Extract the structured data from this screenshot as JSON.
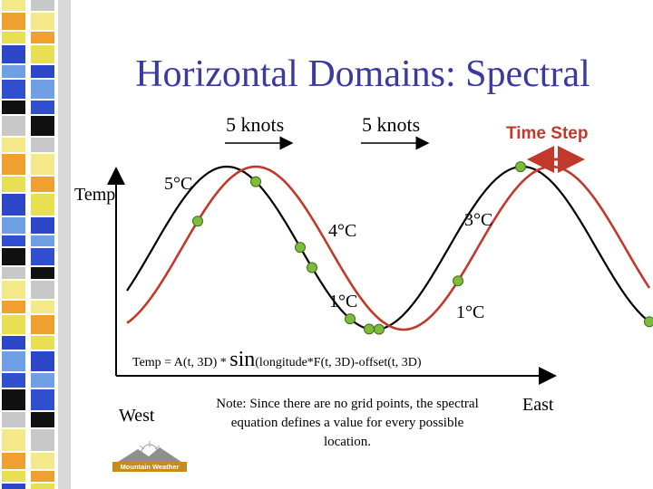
{
  "title": "Horizontal Domains: Spectral",
  "labels": {
    "wind_left": "5 knots",
    "wind_right": "5 knots",
    "time_step": "Time Step",
    "temp_axis": "Temp",
    "west": "West",
    "east": "East"
  },
  "point_values": {
    "v5c": "5°C",
    "v4c": "4°C",
    "v3c": "3°C",
    "v1c_left": "1°C",
    "v1c_right": "1°C"
  },
  "equation": {
    "prefix": "Temp = A(t, 3D) * ",
    "func": "sin",
    "suffix": "(longitude*F(t, 3D)-offset(t, 3D)"
  },
  "note": "Note: Since there are no grid points, the spectral equation defines a value for every possible location.",
  "logo": {
    "text": "Mountain Weather"
  },
  "colors": {
    "title": "#3a3aa0",
    "wave_red": "#c0392b",
    "grid_point": "#7dbb3c",
    "time_step": "#c0392b"
  }
}
